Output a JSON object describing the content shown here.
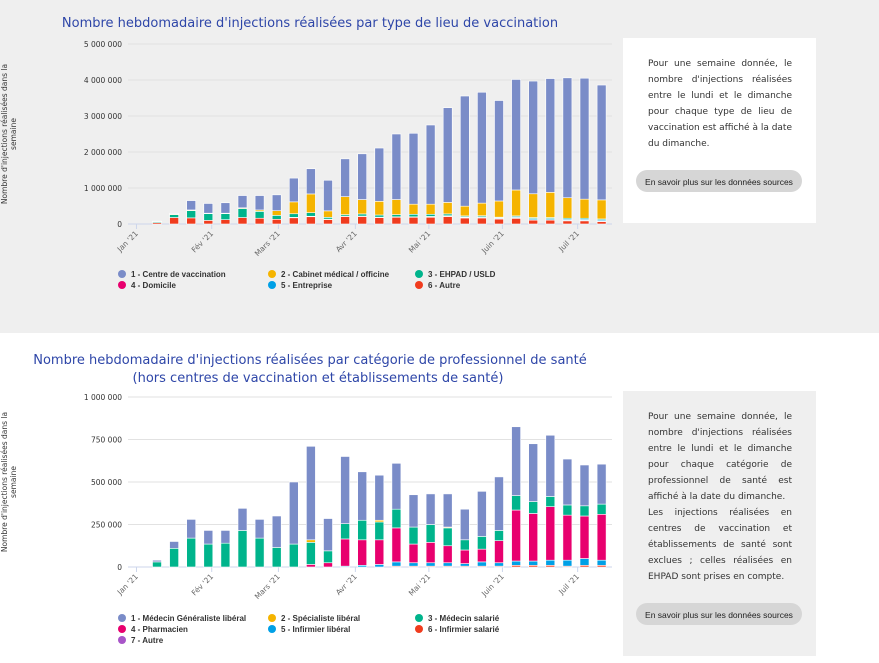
{
  "chart_data": [
    {
      "type": "bar",
      "stacked": true,
      "title": "Nombre hebdomadaire d'injections réalisées par type de lieu de vaccination",
      "ylabel": "Nombre d'injections réalisées dans la semaine",
      "xlabel": "",
      "ylim": [
        0,
        5000000
      ],
      "yticks": [
        0,
        1000000,
        2000000,
        3000000,
        4000000,
        5000000
      ],
      "ytick_labels": [
        "0",
        "1 000 000",
        "2 000 000",
        "3 000 000",
        "4 000 000",
        "5 000 000"
      ],
      "xticks": [
        {
          "label": "Jan '21",
          "week": -1.2
        },
        {
          "label": "Fév '21",
          "week": 3.2
        },
        {
          "label": "Mars '21",
          "week": 7.1
        },
        {
          "label": "Avr '21",
          "week": 11.6
        },
        {
          "label": "Mai '21",
          "week": 15.9
        },
        {
          "label": "Juin '21",
          "week": 20.2
        },
        {
          "label": "Juil '21",
          "week": 24.6
        }
      ],
      "legend_position": "bottom",
      "series": [
        {
          "name": "6 - Autre",
          "color": "#f03c1e",
          "values": [
            40000,
            180000,
            170000,
            100000,
            120000,
            180000,
            160000,
            130000,
            180000,
            210000,
            130000,
            210000,
            210000,
            180000,
            190000,
            190000,
            190000,
            210000,
            170000,
            170000,
            140000,
            160000,
            110000,
            110000,
            90000,
            90000,
            70000
          ]
        },
        {
          "name": "4 - Domicile",
          "color": "#e8006e",
          "values": [
            0,
            0,
            0,
            0,
            0,
            0,
            0,
            0,
            5000,
            5000,
            5000,
            10000,
            10000,
            10000,
            10000,
            10000,
            10000,
            10000,
            10000,
            10000,
            10000,
            10000,
            10000,
            10000,
            10000,
            10000,
            10000
          ]
        },
        {
          "name": "5 - Entreprise",
          "color": "#00a0e6",
          "values": [
            0,
            0,
            0,
            0,
            0,
            0,
            0,
            0,
            0,
            0,
            0,
            0,
            0,
            0,
            0,
            0,
            10000,
            10000,
            15000,
            20000,
            20000,
            25000,
            30000,
            30000,
            30000,
            30000,
            30000
          ]
        },
        {
          "name": "3 - EHPAD / USLD",
          "color": "#00b48c",
          "values": [
            30000,
            80000,
            200000,
            190000,
            170000,
            250000,
            190000,
            110000,
            100000,
            100000,
            50000,
            40000,
            60000,
            60000,
            60000,
            70000,
            60000,
            50000,
            30000,
            30000,
            20000,
            30000,
            30000,
            30000,
            30000,
            30000,
            30000
          ]
        },
        {
          "name": "2 - Cabinet médical / officine",
          "color": "#f5b400",
          "values": [
            0,
            20000,
            20000,
            10000,
            10000,
            20000,
            40000,
            130000,
            330000,
            520000,
            180000,
            500000,
            400000,
            380000,
            420000,
            280000,
            280000,
            320000,
            270000,
            350000,
            450000,
            720000,
            660000,
            700000,
            570000,
            530000,
            530000
          ]
        },
        {
          "name": "1 - Centre de vaccination",
          "color": "#7a8cc8",
          "values": [
            10000,
            20000,
            260000,
            270000,
            290000,
            340000,
            400000,
            440000,
            660000,
            700000,
            850000,
            1050000,
            1270000,
            1480000,
            1820000,
            1970000,
            2200000,
            2630000,
            3060000,
            3080000,
            2790000,
            3070000,
            3130000,
            3160000,
            3330000,
            3360000,
            3190000
          ]
        }
      ],
      "legend_order": [
        5,
        4,
        3,
        1,
        2,
        0
      ]
    },
    {
      "type": "bar",
      "stacked": true,
      "title": "Nombre hebdomadaire d'injections réalisées par catégorie de professionnel de santé",
      "subtitle": "(hors centres de vaccination et établissements de santé)",
      "ylabel": "Nombre d'injections réalisées dans la semaine",
      "xlabel": "",
      "ylim": [
        0,
        1000000
      ],
      "yticks": [
        0,
        250000,
        500000,
        750000,
        1000000
      ],
      "ytick_labels": [
        "0",
        "250 000",
        "500 000",
        "750 000",
        "1 000 000"
      ],
      "xticks": [
        {
          "label": "Jan '21",
          "week": -1.2
        },
        {
          "label": "Fév '21",
          "week": 3.2
        },
        {
          "label": "Mars '21",
          "week": 7.1
        },
        {
          "label": "Avr '21",
          "week": 11.6
        },
        {
          "label": "Mai '21",
          "week": 15.9
        },
        {
          "label": "Juin '21",
          "week": 20.2
        },
        {
          "label": "Juil '21",
          "week": 24.6
        }
      ],
      "legend_position": "bottom",
      "series": [
        {
          "name": "6 - Infirmier salarié",
          "color": "#f03c1e",
          "values": [
            0,
            0,
            0,
            0,
            0,
            0,
            0,
            0,
            0,
            0,
            0,
            0,
            0,
            0,
            5000,
            5000,
            5000,
            5000,
            5000,
            5000,
            5000,
            10000,
            10000,
            10000,
            5000,
            10000,
            10000
          ]
        },
        {
          "name": "5 - Infirmier libéral",
          "color": "#00a0e6",
          "values": [
            0,
            0,
            0,
            0,
            0,
            0,
            0,
            0,
            0,
            0,
            0,
            5000,
            10000,
            15000,
            25000,
            20000,
            20000,
            20000,
            15000,
            25000,
            20000,
            25000,
            25000,
            30000,
            35000,
            40000,
            30000
          ]
        },
        {
          "name": "4 - Pharmacien",
          "color": "#e8006e",
          "values": [
            0,
            0,
            0,
            0,
            0,
            0,
            0,
            0,
            0,
            15000,
            25000,
            160000,
            150000,
            145000,
            200000,
            110000,
            120000,
            100000,
            80000,
            75000,
            130000,
            300000,
            280000,
            315000,
            265000,
            250000,
            270000
          ]
        },
        {
          "name": "3 - Médecin salarié",
          "color": "#00b48c",
          "values": [
            30000,
            110000,
            170000,
            135000,
            140000,
            215000,
            170000,
            115000,
            135000,
            130000,
            70000,
            90000,
            115000,
            105000,
            110000,
            100000,
            105000,
            105000,
            60000,
            75000,
            60000,
            85000,
            70000,
            60000,
            60000,
            60000,
            60000
          ]
        },
        {
          "name": "2 - Spécialiste libéral",
          "color": "#f5b400",
          "values": [
            0,
            0,
            0,
            0,
            0,
            0,
            0,
            0,
            0,
            15000,
            0,
            0,
            0,
            10000,
            0,
            0,
            0,
            5000,
            0,
            0,
            0,
            0,
            0,
            0,
            0,
            0,
            0
          ]
        },
        {
          "name": "7 - Autre",
          "color": "#a855c8",
          "values": [
            0,
            0,
            0,
            0,
            0,
            0,
            0,
            0,
            0,
            0,
            0,
            0,
            0,
            0,
            0,
            0,
            0,
            0,
            0,
            0,
            0,
            0,
            0,
            0,
            0,
            0,
            0
          ]
        },
        {
          "name": "1 - Médecin Généraliste libéral",
          "color": "#7a8cc8",
          "values": [
            10000,
            40000,
            110000,
            80000,
            75000,
            130000,
            110000,
            185000,
            365000,
            550000,
            190000,
            395000,
            285000,
            265000,
            270000,
            190000,
            180000,
            195000,
            180000,
            265000,
            315000,
            405000,
            340000,
            360000,
            270000,
            240000,
            235000
          ]
        }
      ],
      "legend_order": [
        6,
        4,
        3,
        2,
        1,
        0,
        5
      ]
    }
  ],
  "info": [
    {
      "text": "Pour une semaine donnée, le nombre d'injections réalisées entre le lundi et le dimanche pour chaque type de lieu de vaccination est affiché à la date du dimanche.",
      "button": "En savoir plus sur les données sources"
    },
    {
      "text": "Pour une semaine donnée, le nombre d'injections réalisées entre le lundi et le dimanche pour chaque catégorie de professionnel de santé est affiché à la date du dimanche.",
      "text2": "Les injections réalisées en centres de vaccination et établissements de santé sont exclues ; celles réalisées en EHPAD sont prises en compte.",
      "button": "En savoir plus sur les données sources"
    }
  ]
}
